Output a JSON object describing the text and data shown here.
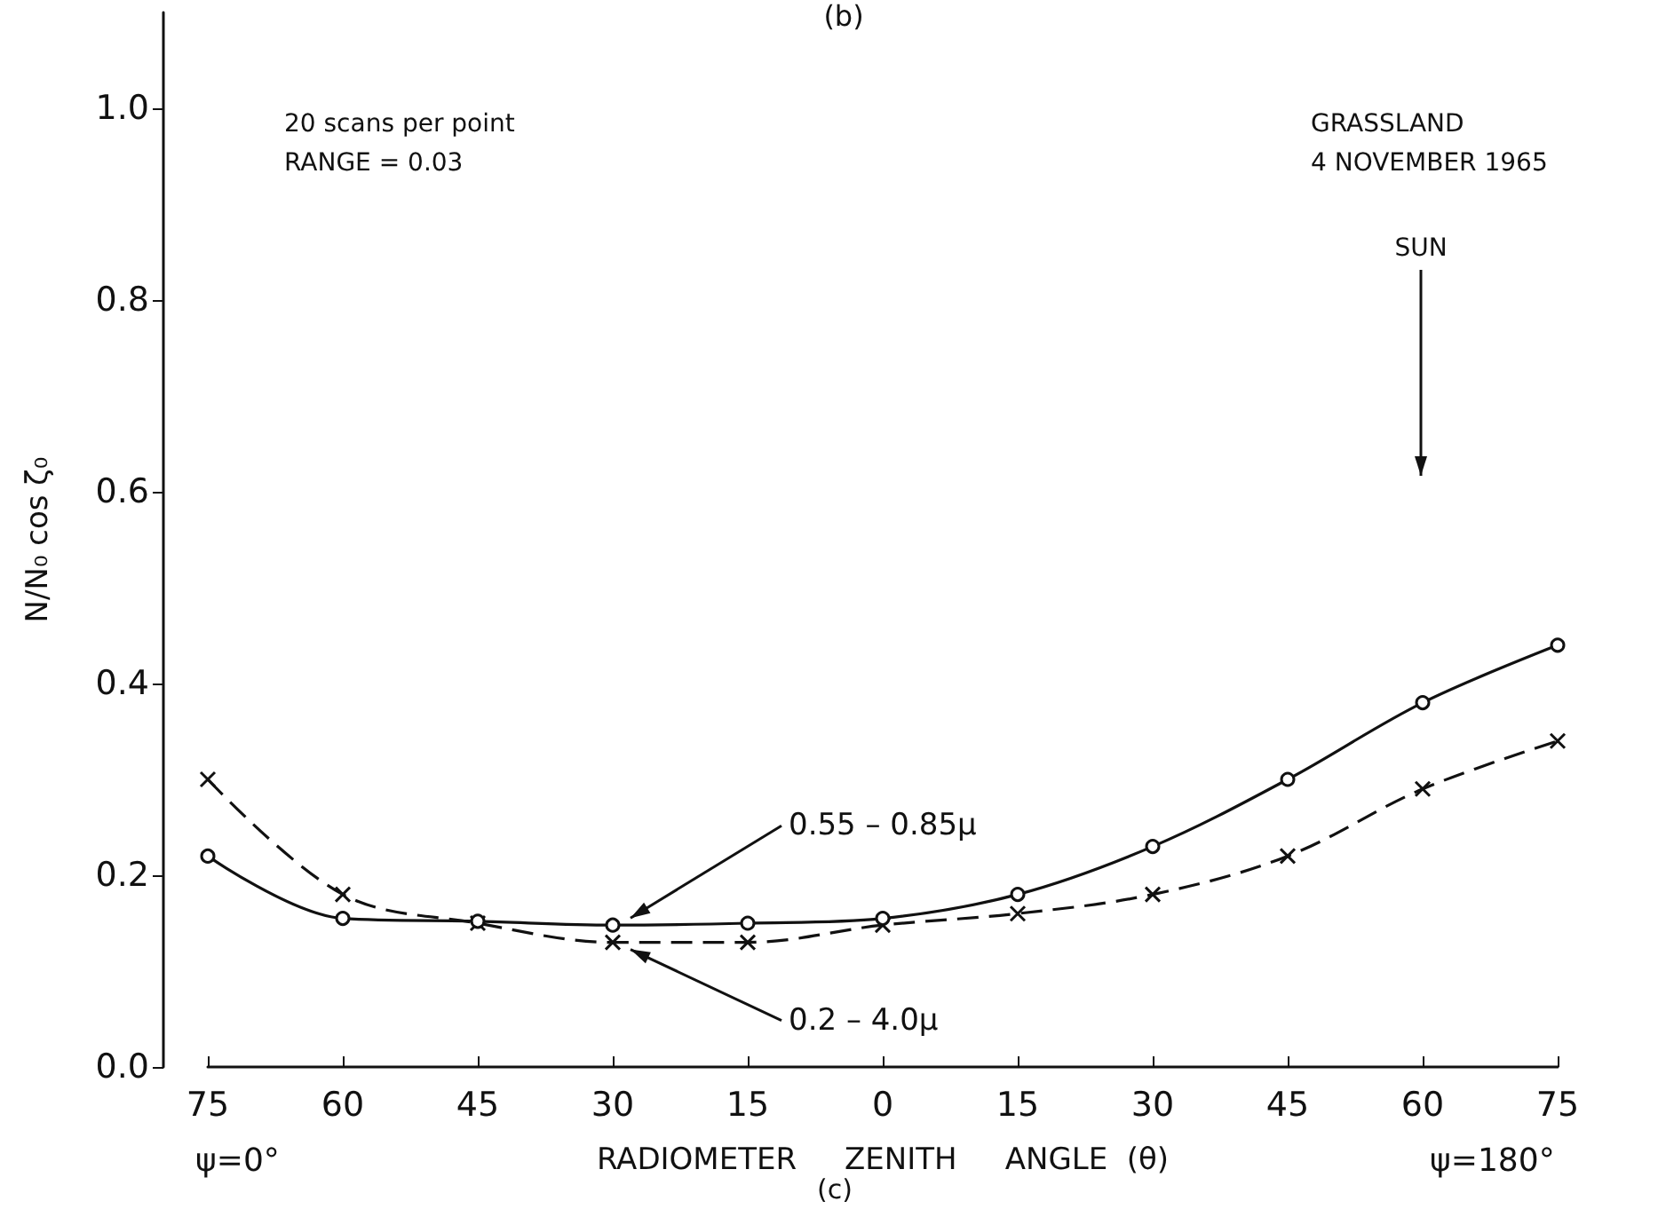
{
  "chart_data": {
    "type": "line",
    "title": "(b)",
    "xlabel": "RADIOMETER     ZENITH     ANGLE  (θ)",
    "ylabel": "N/N₀ cos ζ₀",
    "categories": [
      "75",
      "60",
      "45",
      "30",
      "15",
      "0",
      "15",
      "30",
      "45",
      "60",
      "75"
    ],
    "series": [
      {
        "name": "0.55 – 0.85μ",
        "color": "#111111",
        "marker": "circle",
        "line_style": "solid",
        "values": [
          0.22,
          0.155,
          0.152,
          0.148,
          0.15,
          0.155,
          0.18,
          0.23,
          0.3,
          0.38,
          0.44
        ]
      },
      {
        "name": "0.2 – 4.0μ",
        "color": "#111111",
        "marker": "cross",
        "line_style": "dashed",
        "values": [
          0.3,
          0.18,
          0.15,
          0.13,
          0.13,
          0.148,
          0.16,
          0.18,
          0.22,
          0.29,
          0.34
        ]
      }
    ],
    "ylim": [
      0,
      1.1
    ],
    "yticks": [
      {
        "value": 0,
        "label": "0.0"
      },
      0.2,
      0.4,
      0.6,
      0.8,
      {
        "value": 1,
        "label": "1.0"
      }
    ],
    "grid": false,
    "legend": false,
    "annotations": [
      "20 scans per point",
      "RANGE = 0.03",
      "GRASSLAND",
      "4 NOVEMBER 1965",
      "SUN",
      "ψ=0°",
      "ψ=180°",
      "(c)"
    ]
  }
}
